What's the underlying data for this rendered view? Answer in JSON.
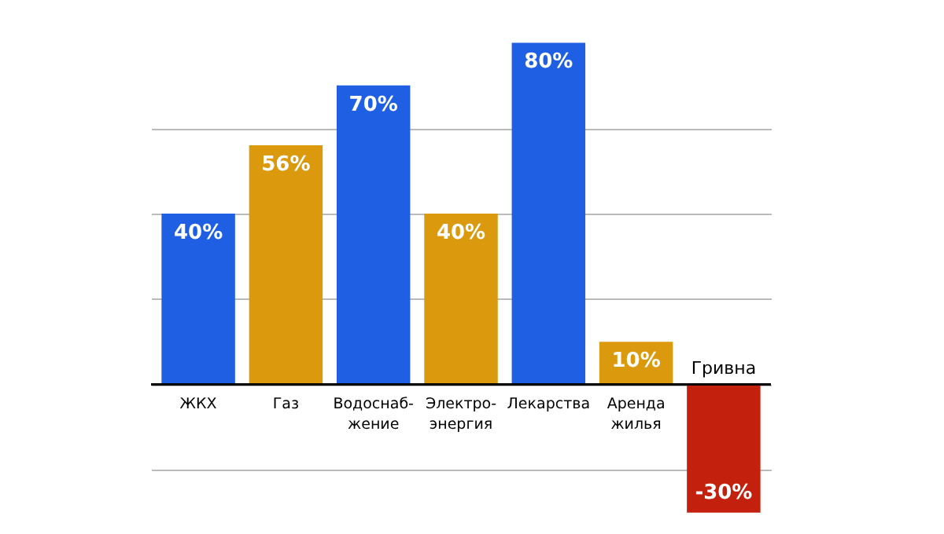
{
  "chart_data": {
    "type": "bar",
    "categories": [
      "ЖКХ",
      "Газ",
      "Водоснаб-\nжение",
      "Электро-\nэнергия",
      "Лекарства",
      "Аренда\nжилья",
      "Гривна"
    ],
    "values": [
      40,
      56,
      70,
      40,
      80,
      10,
      -30
    ],
    "colors": [
      "#1f5fe3",
      "#db9a0e",
      "#1f5fe3",
      "#db9a0e",
      "#1f5fe3",
      "#db9a0e",
      "#c4200e"
    ],
    "value_labels": [
      "40%",
      "56%",
      "70%",
      "40%",
      "80%",
      "10%",
      "-30%"
    ],
    "ylim": [
      -35,
      90
    ],
    "yticks": [
      {
        "value": -20,
        "label": null
      },
      {
        "value": 0,
        "label": null
      },
      {
        "value": 20,
        "label": null
      },
      {
        "value": 40,
        "label": null
      },
      {
        "value": 60,
        "label": null
      }
    ],
    "grid": "y",
    "tick_labels": "x"
  }
}
